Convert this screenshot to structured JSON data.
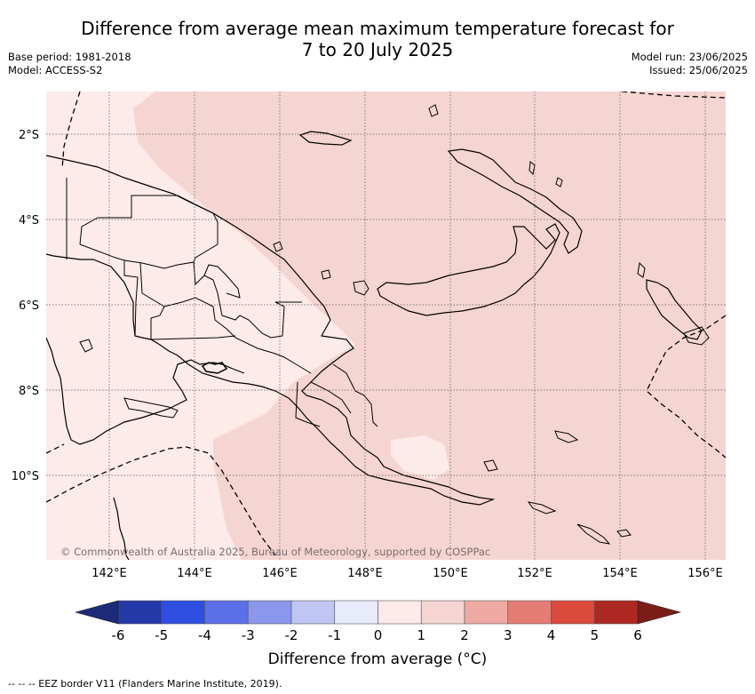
{
  "title": "Difference from average mean maximum temperature forecast for 7 to 20 July 2025",
  "title_line1": "Difference from average mean maximum temperature forecast for",
  "title_line2": "7 to 20 July 2025",
  "base_period": "Base period: 1981-2018",
  "model": "Model: ACCESS-S2",
  "model_run": "Model run: 23/06/2025",
  "issued": "Issued: 25/06/2025",
  "credit": "© Commonwealth of Australia 2025, Bureau of Meteorology, supported by COSPPac",
  "map": {
    "lat_labels": [
      "2°S",
      "4°S",
      "6°S",
      "8°S",
      "10°S"
    ],
    "lon_labels": [
      "142°E",
      "144°E",
      "146°E",
      "148°E",
      "150°E",
      "152°E",
      "154°E",
      "156°E"
    ],
    "lat_values": [
      -2,
      -4,
      -6,
      -8,
      -10
    ],
    "lon_values": [
      142,
      144,
      146,
      148,
      150,
      152,
      154,
      156
    ],
    "lon_range": [
      140.5,
      156.5
    ],
    "lat_range": [
      -12,
      -1
    ],
    "category_colors": {
      "0_to_1": "#fcebe8",
      "1_to_2": "#f5d5d1"
    }
  },
  "colorbar": {
    "ticks": [
      "-6",
      "-5",
      "-4",
      "-3",
      "-2",
      "-1",
      "0",
      "1",
      "2",
      "3",
      "4",
      "5",
      "6"
    ],
    "colors": [
      "#2438a8",
      "#2e4fe0",
      "#5b70e8",
      "#8a97ec",
      "#c0c6f4",
      "#e8ebfa",
      "#fcebe8",
      "#f5d5d1",
      "#efaaa4",
      "#e67d75",
      "#dc4a3c",
      "#ad2822"
    ],
    "under_color": "#1c2a7a",
    "over_color": "#7a1e1a",
    "label": "Difference from average (°C)"
  },
  "eez_legend": "-- -- -- EEZ border V11 (Flanders Marine Institute, 2019)."
}
